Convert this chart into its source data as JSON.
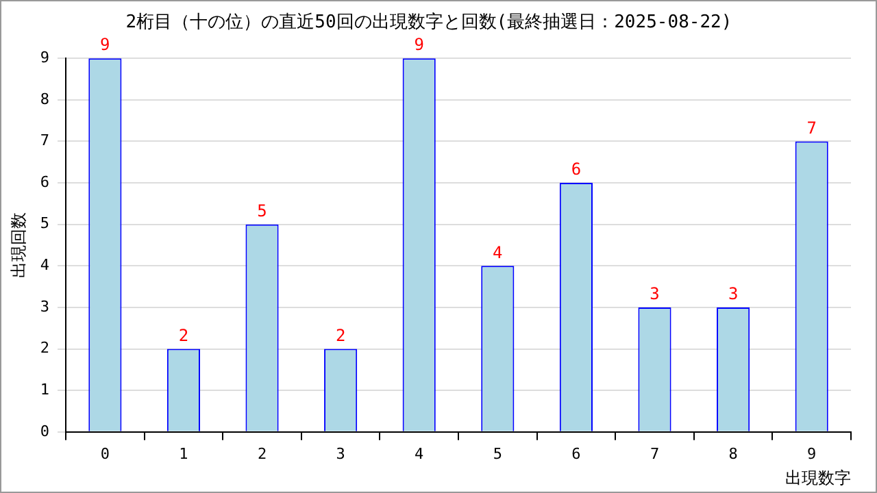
{
  "chart_data": {
    "type": "bar",
    "title": "2桁目（十の位）の直近50回の出現数字と回数(最終抽選日：2025-08-22)",
    "xlabel": "出現数字",
    "ylabel": "出現回数",
    "categories": [
      "0",
      "1",
      "2",
      "3",
      "4",
      "5",
      "6",
      "7",
      "8",
      "9"
    ],
    "values": [
      9,
      2,
      5,
      2,
      9,
      4,
      6,
      3,
      3,
      7
    ],
    "color": "#add8e6",
    "ylim": [
      0,
      9
    ],
    "yticks": [
      0,
      1,
      2,
      3,
      4,
      5,
      6,
      7,
      8,
      9
    ],
    "grid": "y",
    "data_labels": true,
    "legend": false
  }
}
